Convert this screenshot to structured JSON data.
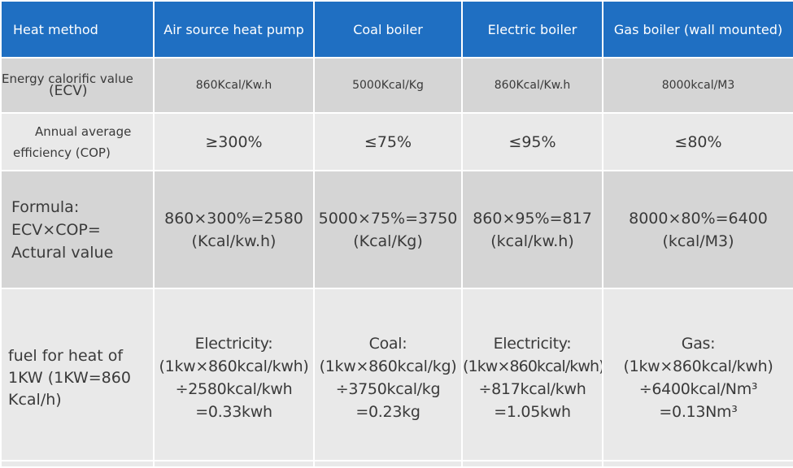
{
  "table": {
    "headers": [
      "Heat method",
      "Air source heat pump",
      "Coal boiler",
      "Electric boiler",
      "Gas boiler (wall mounted)"
    ],
    "rows": {
      "ecv": {
        "label_line1": "Energy calorific value",
        "label_line2": "(ECV)",
        "cells": [
          "860Kcal/Kw.h",
          "5000Kcal/Kg",
          "860Kcal/Kw.h",
          "8000kcal/M3"
        ]
      },
      "cop": {
        "label_line1": "Annual average",
        "label_line2": "efficiency (COP)",
        "cells": [
          "≥300%",
          "≤75%",
          "≤95%",
          "≤80%"
        ]
      },
      "formula": {
        "label_lines": [
          "Formula:",
          "ECV×COP=",
          "Actural value"
        ],
        "cells": [
          {
            "line1": "860×300%=2580",
            "line2": "(Kcal/kw.h)"
          },
          {
            "line1": "5000×75%=3750",
            "line2": "(Kcal/Kg)"
          },
          {
            "line1": "860×95%=817",
            "line2": "(kcal/kw.h)"
          },
          {
            "line1": "8000×80%=6400",
            "line2": "(kcal/M3)"
          }
        ]
      },
      "fuel": {
        "label_lines": [
          "fuel for heat of",
          "1KW (1KW=860",
          "Kcal/h)"
        ],
        "cells": [
          {
            "line1": "Electricity:",
            "line2": "(1kw×860kcal/kwh)",
            "line3": "÷2580kcal/kwh",
            "line4": "=0.33kwh"
          },
          {
            "line1": "Coal:",
            "line2": "(1kw×860kcal/kg)",
            "line3": "÷3750kcal/kg",
            "line4": "=0.23kg"
          },
          {
            "line1": "Electricity:",
            "line2": "(1kw×860kcal/kwh)",
            "line3": "÷817kcal/kwh",
            "line4": "=1.05kwh"
          },
          {
            "line1": "Gas:",
            "line2": "(1kw×860kcal/kwh)",
            "line3": "÷6400kcal/Nm³",
            "line4": "=0.13Nm³"
          }
        ]
      }
    },
    "colors": {
      "header_bg": "#1f6fc2",
      "header_text": "#ffffff",
      "row_dark": "#d5d5d5",
      "row_light": "#e9e9e9",
      "body_text": "#3a3a3a"
    }
  }
}
